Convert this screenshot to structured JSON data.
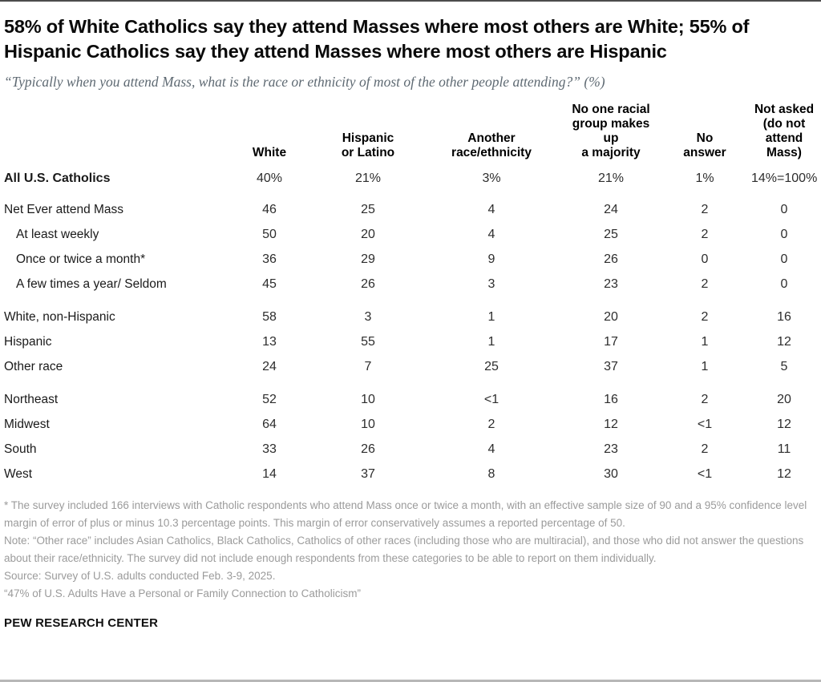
{
  "header": {
    "title": "58% of White Catholics say they attend Masses where most others are White; 55% of Hispanic Catholics say they attend Masses where most others are Hispanic",
    "subtitle": "“Typically when you attend Mass, what is the race or ethnicity of most of the other people attending?” (%)"
  },
  "table": {
    "header_display": [
      "White",
      "Hispanic\nor Latino",
      "Another\nrace/ethnicity",
      "No one racial\ngroup makes up\na majority",
      "No\nanswer",
      "Not asked\n(do not\nattend\nMass)"
    ]
  },
  "chart_data": {
    "type": "table",
    "title": "58% of White Catholics say they attend Masses where most others are White; 55% of Hispanic Catholics say they attend Masses where most others are Hispanic",
    "question": "“Typically when you attend Mass, what is the race or ethnicity of most of the other people attending?” (%)",
    "columns": [
      "White",
      "Hispanic or Latino",
      "Another race/ethnicity",
      "No one racial group makes up a majority",
      "No answer",
      "Not asked (do not attend Mass)"
    ],
    "summary_row": {
      "label": "All U.S. Catholics",
      "values": [
        "40%",
        "21%",
        "3%",
        "21%",
        "1%",
        "14%=100%"
      ]
    },
    "groups": [
      {
        "rows": [
          {
            "label": "Net Ever attend Mass",
            "indent": false,
            "values": [
              "46",
              "25",
              "4",
              "24",
              "2",
              "0"
            ]
          },
          {
            "label": "At least weekly",
            "indent": true,
            "values": [
              "50",
              "20",
              "4",
              "25",
              "2",
              "0"
            ]
          },
          {
            "label": "Once or twice a month*",
            "indent": true,
            "values": [
              "36",
              "29",
              "9",
              "26",
              "0",
              "0"
            ]
          },
          {
            "label": "A few times a year/ Seldom",
            "indent": true,
            "values": [
              "45",
              "26",
              "3",
              "23",
              "2",
              "0"
            ]
          }
        ]
      },
      {
        "rows": [
          {
            "label": "White, non-Hispanic",
            "indent": false,
            "values": [
              "58",
              "3",
              "1",
              "20",
              "2",
              "16"
            ]
          },
          {
            "label": "Hispanic",
            "indent": false,
            "values": [
              "13",
              "55",
              "1",
              "17",
              "1",
              "12"
            ]
          },
          {
            "label": "Other race",
            "indent": false,
            "values": [
              "24",
              "7",
              "25",
              "37",
              "1",
              "5"
            ]
          }
        ]
      },
      {
        "rows": [
          {
            "label": "Northeast",
            "indent": false,
            "values": [
              "52",
              "10",
              "<1",
              "16",
              "2",
              "20"
            ]
          },
          {
            "label": "Midwest",
            "indent": false,
            "values": [
              "64",
              "10",
              "2",
              "12",
              "<1",
              "12"
            ]
          },
          {
            "label": "South",
            "indent": false,
            "values": [
              "33",
              "26",
              "4",
              "23",
              "2",
              "11"
            ]
          },
          {
            "label": "West",
            "indent": false,
            "values": [
              "14",
              "37",
              "8",
              "30",
              "<1",
              "12"
            ]
          }
        ]
      }
    ]
  },
  "notes": {
    "asterisk": "* The survey included 166 interviews with Catholic respondents who attend Mass once or twice a month, with an effective sample size of 90 and a 95% confidence level margin of error of plus or minus 10.3 percentage points. This margin of error conservatively assumes a reported percentage of 50.",
    "note": "Note: “Other race” includes Asian Catholics, Black Catholics, Catholics of other races (including those who are multiracial), and those who did not answer the questions about their race/ethnicity. The survey did not include enough respondents from these categories to be able to report on them individually.",
    "source": "Source: Survey of U.S. adults conducted Feb. 3-9, 2025.",
    "report_title": "“47% of U.S. Adults Have a Personal or Family Connection to Catholicism”"
  },
  "footer": {
    "wordmark": "PEW RESEARCH CENTER"
  },
  "colors": {
    "title": "#0a0a0a",
    "subtitle": "#5f6a73",
    "notes": "#9b9b9b",
    "top_rule": "#4c4c4c",
    "bottom_rule": "#b7b7b7"
  }
}
